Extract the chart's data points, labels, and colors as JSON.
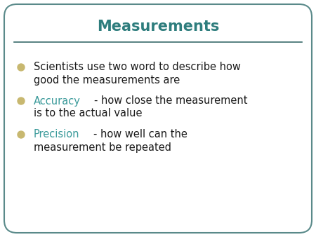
{
  "title": "Measurements",
  "title_color": "#2e7d7d",
  "title_fontsize": 15,
  "title_fontweight": "bold",
  "background_color": "#ffffff",
  "border_color": "#5a8a8a",
  "line_color": "#3a6b6b",
  "bullet_color": "#c8b870",
  "bullet_points": [
    {
      "prefix": "",
      "prefix_color": "#000000",
      "line1": "Scientists use two word to describe how",
      "line2": "good the measurements are"
    },
    {
      "prefix": "Accuracy",
      "prefix_color": "#3a9a9a",
      "line1": "- how close the measurement",
      "line2": "is to the actual value"
    },
    {
      "prefix": "Precision",
      "prefix_color": "#3a9a9a",
      "line1": "- how well can the",
      "line2": "measurement be repeated"
    }
  ],
  "text_color": "#1a1a1a",
  "fontsize": 10.5,
  "fontfamily": "DejaVu Sans"
}
